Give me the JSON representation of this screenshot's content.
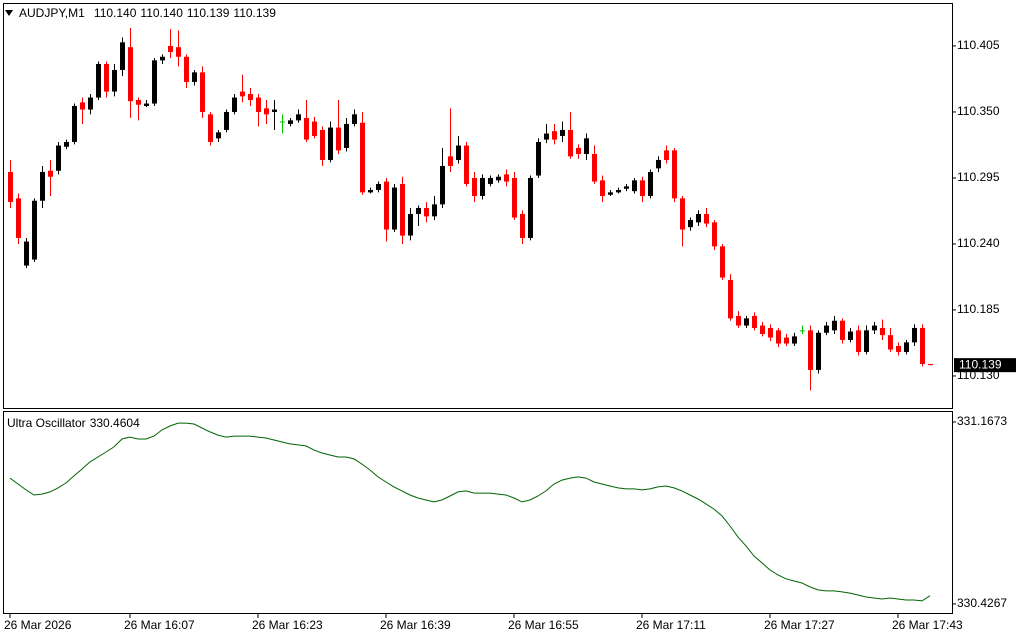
{
  "chart_data": [
    {
      "type": "candlestick",
      "title": "AUDJPY,M1",
      "ohlc_labels": [
        "110.140",
        "110.140",
        "110.139",
        "110.139"
      ],
      "categories": [
        "26 Mar 2026",
        null,
        null,
        null,
        null,
        null,
        null,
        null,
        null,
        null,
        null,
        null,
        null,
        null,
        null,
        "26 Mar 16:07",
        null,
        null,
        null,
        null,
        null,
        null,
        null,
        null,
        null,
        null,
        null,
        null,
        null,
        null,
        null,
        "26 Mar 16:23",
        null,
        null,
        null,
        null,
        null,
        null,
        null,
        null,
        null,
        null,
        null,
        null,
        null,
        null,
        null,
        "26 Mar 16:39",
        null,
        null,
        null,
        null,
        null,
        null,
        null,
        null,
        null,
        null,
        null,
        null,
        null,
        null,
        null,
        "26 Mar 16:55",
        null,
        null,
        null,
        null,
        null,
        null,
        null,
        null,
        null,
        null,
        null,
        null,
        null,
        null,
        null,
        "26 Mar 17:11",
        null,
        null,
        null,
        null,
        null,
        null,
        null,
        null,
        null,
        null,
        null,
        null,
        null,
        null,
        null,
        "26 Mar 17:27",
        null,
        null,
        null,
        null,
        null,
        null,
        null,
        null,
        null,
        null,
        null,
        null,
        null,
        null,
        null,
        "26 Mar 17:43",
        null,
        null,
        null,
        null
      ],
      "open": [
        110.3,
        110.278,
        110.222,
        110.227,
        110.276,
        110.301,
        110.301,
        110.321,
        110.325,
        110.358,
        110.352,
        110.362,
        110.39,
        110.367,
        110.385,
        110.404,
        110.36,
        110.355,
        110.357,
        110.393,
        110.405,
        110.404,
        110.396,
        110.375,
        110.383,
        110.348,
        110.328,
        110.335,
        110.35,
        110.367,
        110.365,
        110.362,
        110.353,
        110.35,
        110.342,
        110.34,
        110.343,
        110.345,
        110.342,
        110.335,
        110.31,
        110.337,
        110.32,
        110.34,
        110.341,
        110.283,
        110.285,
        110.292,
        110.252,
        110.29,
        110.247,
        110.265,
        110.27,
        110.263,
        110.273,
        110.313,
        110.31,
        110.322,
        110.295,
        110.28,
        110.29,
        110.293,
        110.298,
        110.295,
        110.265,
        110.245,
        110.297,
        110.327,
        110.334,
        110.33,
        110.335,
        110.32,
        110.315,
        110.315,
        110.293,
        110.281,
        110.283,
        110.286,
        110.284,
        110.293,
        110.28,
        110.303,
        110.318,
        110.318,
        110.278,
        110.254,
        110.258,
        110.265,
        110.258,
        110.238,
        110.21,
        110.18,
        110.172,
        110.18,
        110.172,
        110.17,
        110.168,
        110.162,
        110.157,
        110.168,
        110.168,
        110.135,
        110.166,
        110.168,
        110.176,
        110.16,
        110.168,
        110.15,
        110.168,
        110.17,
        110.164,
        110.155,
        110.15,
        110.158,
        110.17,
        110.14
      ],
      "high": [
        110.31,
        110.282,
        110.245,
        110.278,
        110.305,
        110.31,
        110.325,
        110.327,
        110.357,
        110.362,
        110.365,
        110.392,
        110.392,
        110.39,
        110.412,
        110.42,
        110.362,
        110.36,
        110.395,
        110.398,
        110.419,
        110.418,
        110.398,
        110.385,
        110.388,
        110.35,
        110.335,
        110.352,
        110.365,
        110.381,
        110.37,
        110.365,
        110.36,
        110.36,
        110.348,
        110.345,
        110.352,
        110.36,
        110.346,
        110.338,
        110.342,
        110.36,
        110.345,
        110.352,
        110.35,
        110.287,
        110.292,
        110.295,
        110.29,
        110.296,
        110.27,
        110.272,
        110.275,
        110.28,
        110.32,
        110.353,
        110.33,
        110.325,
        110.3,
        110.298,
        110.297,
        110.298,
        110.302,
        110.3,
        110.268,
        110.297,
        110.328,
        110.34,
        110.34,
        110.342,
        110.35,
        110.323,
        110.332,
        110.322,
        110.297,
        110.285,
        110.287,
        110.29,
        110.295,
        110.296,
        110.302,
        110.313,
        110.322,
        110.32,
        110.28,
        110.262,
        110.268,
        110.27,
        110.26,
        110.24,
        110.215,
        110.184,
        110.18,
        110.183,
        110.175,
        110.173,
        110.17,
        110.165,
        110.166,
        110.172,
        110.172,
        110.168,
        110.175,
        110.18,
        110.178,
        110.17,
        110.172,
        110.172,
        110.175,
        110.177,
        110.17,
        110.158,
        110.16,
        110.173,
        110.173,
        110.14
      ],
      "low": [
        110.27,
        110.24,
        110.22,
        110.225,
        110.27,
        110.28,
        110.298,
        110.319,
        110.323,
        110.34,
        110.348,
        110.36,
        110.362,
        110.363,
        110.38,
        110.345,
        110.343,
        110.354,
        110.355,
        110.39,
        110.395,
        110.388,
        110.37,
        110.372,
        110.345,
        110.322,
        110.325,
        110.333,
        110.348,
        110.358,
        110.355,
        110.338,
        110.34,
        110.335,
        110.332,
        110.338,
        110.341,
        110.325,
        110.328,
        110.305,
        110.308,
        110.315,
        110.317,
        110.338,
        110.281,
        110.282,
        110.283,
        110.242,
        110.25,
        110.24,
        110.243,
        110.255,
        110.258,
        110.26,
        110.27,
        110.3,
        110.307,
        110.288,
        110.275,
        110.277,
        110.288,
        110.291,
        110.288,
        110.26,
        110.24,
        110.243,
        110.295,
        110.324,
        110.323,
        110.325,
        110.311,
        110.311,
        110.31,
        110.29,
        110.275,
        110.28,
        110.282,
        110.284,
        110.282,
        110.275,
        110.278,
        110.3,
        110.307,
        110.275,
        110.238,
        110.251,
        110.255,
        110.254,
        110.235,
        110.21,
        110.176,
        110.17,
        110.17,
        110.168,
        110.163,
        110.159,
        110.154,
        110.155,
        110.155,
        110.165,
        110.118,
        110.132,
        110.164,
        110.165,
        110.157,
        110.158,
        110.147,
        110.148,
        110.165,
        110.16,
        110.15,
        110.147,
        110.148,
        110.155,
        110.138,
        110.139
      ],
      "close": [
        110.275,
        110.245,
        110.242,
        110.276,
        110.3,
        110.296,
        110.322,
        110.325,
        110.355,
        110.352,
        110.362,
        110.39,
        110.367,
        110.385,
        110.408,
        110.359,
        110.356,
        110.357,
        110.393,
        110.396,
        110.4,
        110.396,
        110.375,
        110.383,
        110.35,
        110.325,
        110.333,
        110.35,
        110.362,
        110.363,
        110.36,
        110.35,
        110.348,
        110.352,
        110.342,
        110.343,
        110.348,
        110.327,
        110.33,
        110.31,
        110.337,
        110.318,
        110.34,
        110.348,
        110.283,
        110.285,
        110.29,
        110.252,
        110.287,
        110.247,
        110.265,
        110.27,
        110.263,
        110.273,
        110.305,
        110.305,
        110.322,
        110.29,
        110.28,
        110.295,
        110.295,
        110.296,
        110.292,
        110.262,
        110.245,
        110.295,
        110.325,
        110.332,
        110.327,
        110.335,
        110.313,
        110.315,
        110.328,
        110.292,
        110.28,
        110.283,
        110.285,
        110.288,
        110.293,
        110.28,
        110.3,
        110.31,
        110.31,
        110.278,
        110.252,
        110.26,
        110.265,
        110.257,
        110.238,
        110.212,
        110.178,
        110.172,
        110.178,
        110.17,
        110.165,
        110.162,
        110.157,
        110.157,
        110.163,
        110.168,
        110.135,
        110.166,
        110.172,
        110.176,
        110.16,
        110.167,
        110.15,
        110.168,
        110.172,
        110.164,
        110.152,
        110.15,
        110.158,
        110.17,
        110.14,
        110.139
      ],
      "ylim": [
        110.1033,
        110.4408
      ],
      "yticks": [
        110.405,
        {
          "value": 110.35,
          "label": "110.350"
        },
        110.295,
        {
          "value": 110.24,
          "label": "110.240"
        },
        110.185,
        {
          "value": 110.13,
          "label": "110.130"
        }
      ],
      "up_color": "#000000",
      "down_color": "#ff0000",
      "doji_color": "#00c000"
    },
    {
      "type": "line",
      "title": "Ultra Oscillator",
      "values": [
        330.939,
        330.915,
        330.891,
        330.87,
        330.874,
        330.883,
        330.899,
        330.919,
        330.948,
        330.976,
        331.005,
        331.025,
        331.045,
        331.066,
        331.098,
        331.106,
        331.098,
        331.098,
        331.11,
        331.135,
        331.151,
        331.163,
        331.163,
        331.159,
        331.143,
        331.127,
        331.114,
        331.106,
        331.11,
        331.11,
        331.11,
        331.106,
        331.102,
        331.094,
        331.086,
        331.078,
        331.074,
        331.07,
        331.053,
        331.041,
        331.033,
        331.025,
        331.025,
        331.017,
        330.996,
        330.972,
        330.944,
        330.923,
        330.903,
        330.887,
        330.87,
        330.858,
        330.85,
        330.842,
        330.85,
        330.866,
        330.883,
        330.887,
        330.878,
        330.878,
        330.878,
        330.874,
        330.87,
        330.858,
        330.842,
        330.85,
        330.866,
        330.887,
        330.915,
        330.931,
        330.939,
        330.944,
        330.939,
        330.923,
        330.915,
        330.907,
        330.899,
        330.895,
        330.895,
        330.891,
        330.895,
        330.903,
        330.907,
        330.899,
        330.887,
        330.87,
        330.854,
        330.834,
        330.813,
        330.785,
        330.744,
        330.699,
        330.663,
        330.622,
        330.594,
        330.565,
        330.545,
        330.529,
        330.52,
        330.512,
        330.496,
        330.484,
        330.48,
        330.48,
        330.476,
        330.471,
        330.463,
        330.455,
        330.451,
        330.447,
        330.451,
        330.447,
        330.443,
        330.443,
        330.439,
        330.4604
      ],
      "color": "#006400",
      "ylim": [
        330.394,
        331.208
      ],
      "yticks": [
        331.1673,
        330.4267
      ]
    }
  ]
}
